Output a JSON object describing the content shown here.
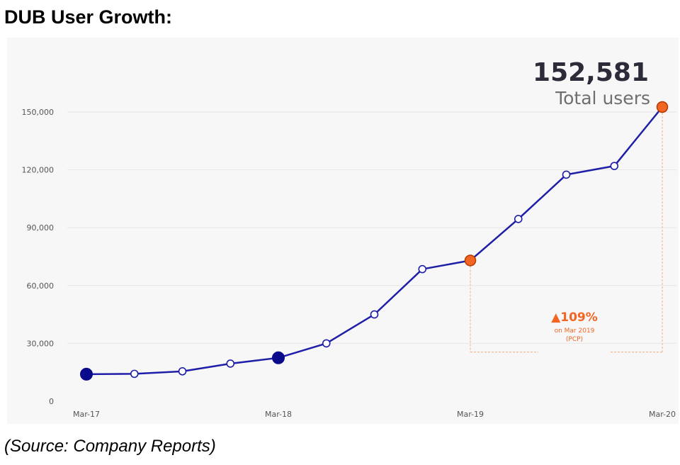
{
  "page": {
    "title": "DUB User Growth:",
    "source": "(Source: Company Reports)"
  },
  "colors": {
    "line": "#1e1ea8",
    "milestone": "#0a0a8c",
    "highlight": "#f26522",
    "highlight_dark": "#b33a00",
    "open_point_fill": "#ffffff",
    "gridline": "#e6e6e6",
    "leader": "#f5b896",
    "panel": "#f7f7f7"
  },
  "chart_data": {
    "type": "line",
    "title": "DUB User Growth:",
    "xlabel": "",
    "ylabel": "",
    "ylim": [
      0,
      150000
    ],
    "yticks": [
      0,
      30000,
      60000,
      90000,
      120000,
      150000
    ],
    "ytick_labels": [
      "0",
      "30,000",
      "60,000",
      "90,000",
      "120,000",
      "150,000"
    ],
    "xtick_labels": [
      "Mar-17",
      "Mar-18",
      "Mar-19",
      "Mar-20"
    ],
    "xtick_indices": [
      0,
      4,
      8,
      12
    ],
    "series": [
      {
        "name": "Total users",
        "values": [
          14000,
          14200,
          15500,
          19500,
          22500,
          30000,
          45000,
          68500,
          73000,
          94500,
          117500,
          122000,
          152581
        ],
        "markers": [
          "milestone",
          "open",
          "open",
          "open",
          "milestone",
          "open",
          "open",
          "open",
          "highlight",
          "open",
          "open",
          "open",
          "highlight"
        ]
      }
    ],
    "annotations": {
      "total_value": "152,581",
      "total_label": "Total users",
      "growth_pct": "▲109%",
      "growth_line1": "on Mar 2019",
      "growth_line2": "(PCP)",
      "growth_from_index": 8,
      "growth_to_index": 12,
      "growth_bracket_value": 25500
    },
    "grid": true
  }
}
